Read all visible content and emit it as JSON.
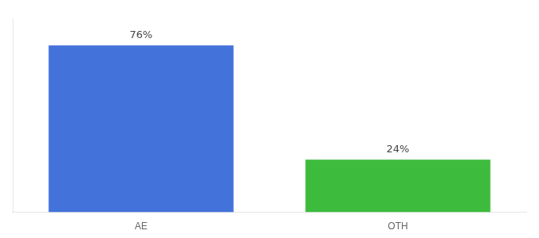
{
  "chart_data": {
    "type": "bar",
    "categories": [
      "AE",
      "OTH"
    ],
    "values": [
      76,
      24
    ],
    "value_labels": [
      "76%",
      "24%"
    ],
    "colors": [
      "#4472db",
      "#3dbb3d"
    ],
    "ylim": [
      0,
      88
    ],
    "grid": false,
    "data_labels": true,
    "tick_labels": "x"
  }
}
